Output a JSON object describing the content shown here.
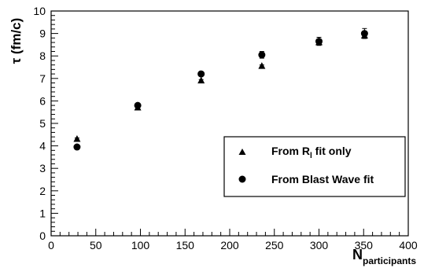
{
  "chart_data": {
    "type": "scatter",
    "xlim": [
      0,
      400
    ],
    "ylim": [
      0,
      10
    ],
    "x_ticks": [
      0,
      50,
      100,
      150,
      200,
      250,
      300,
      350,
      400
    ],
    "y_ticks": [
      0,
      1,
      2,
      3,
      4,
      5,
      6,
      7,
      8,
      9,
      10
    ],
    "x_tick_labels": [
      "0",
      "50",
      "100",
      "150",
      "200",
      "250",
      "300",
      "350",
      "400"
    ],
    "y_tick_labels": [
      "0",
      "1",
      "2",
      "3",
      "4",
      "5",
      "6",
      "7",
      "8",
      "9",
      "10"
    ],
    "xlabel": "N",
    "xlabel_sub": "participants",
    "ylabel": "τ (fm/c)",
    "grid": false,
    "legend_position": "bottom-right",
    "series": [
      {
        "name": "From R_l fit only",
        "name_main": "From R",
        "name_sub": "l",
        "name_tail": " fit only",
        "marker": "triangle",
        "x": [
          29,
          97,
          168,
          236,
          300,
          351
        ],
        "y": [
          4.3,
          5.7,
          6.9,
          7.55,
          8.6,
          8.9
        ],
        "err": [
          0.05,
          0.05,
          0.05,
          0.05,
          0.08,
          0.12
        ]
      },
      {
        "name": "From Blast Wave fit",
        "marker": "circle",
        "x": [
          29,
          97,
          168,
          236,
          300,
          351
        ],
        "y": [
          3.95,
          5.8,
          7.2,
          8.05,
          8.65,
          9.0
        ],
        "err": [
          0.05,
          0.05,
          0.06,
          0.15,
          0.18,
          0.22
        ]
      }
    ]
  }
}
